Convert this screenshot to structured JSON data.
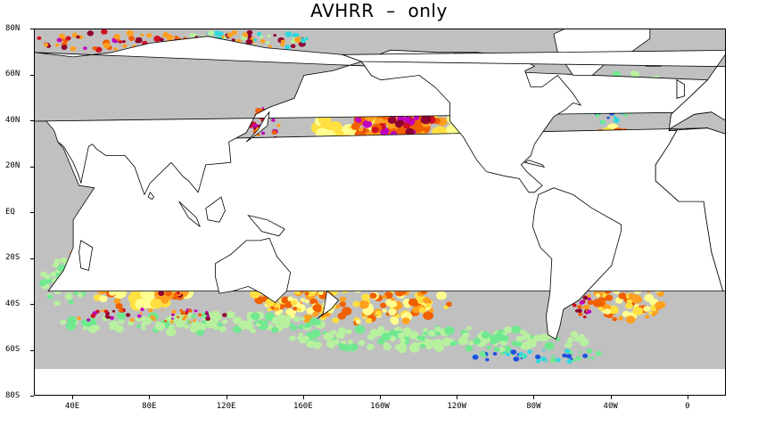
{
  "title": "AVHRR  –  only",
  "axes": {
    "lat_labels": [
      "80N",
      "60N",
      "40N",
      "20N",
      "EQ",
      "20S",
      "40S",
      "60S",
      "80S"
    ],
    "lat_values": [
      80,
      60,
      40,
      20,
      0,
      -20,
      -40,
      -60,
      -80
    ],
    "lon_labels": [
      "40E",
      "80E",
      "120E",
      "160E",
      "160W",
      "120W",
      "80W",
      "40W",
      "0"
    ],
    "lon_values": [
      40,
      80,
      120,
      160,
      200,
      240,
      280,
      320,
      360
    ]
  },
  "map": {
    "projection": "equirectangular",
    "lon_range": [
      20,
      380
    ],
    "lat_range": [
      -80,
      80
    ],
    "land_color": "#ffffff",
    "coastline_color": "#000000",
    "colors": {
      "neutral": "#c0c0c0",
      "light_green": "#b8f0a0",
      "green": "#70e890",
      "cyan": "#30d8e0",
      "blue": "#2050e0",
      "light_yellow": "#ffff90",
      "yellow": "#ffe040",
      "orange": "#ffa020",
      "dark_orange": "#f06000",
      "red": "#d01020",
      "dark_red": "#900030",
      "magenta": "#c000c0"
    }
  }
}
